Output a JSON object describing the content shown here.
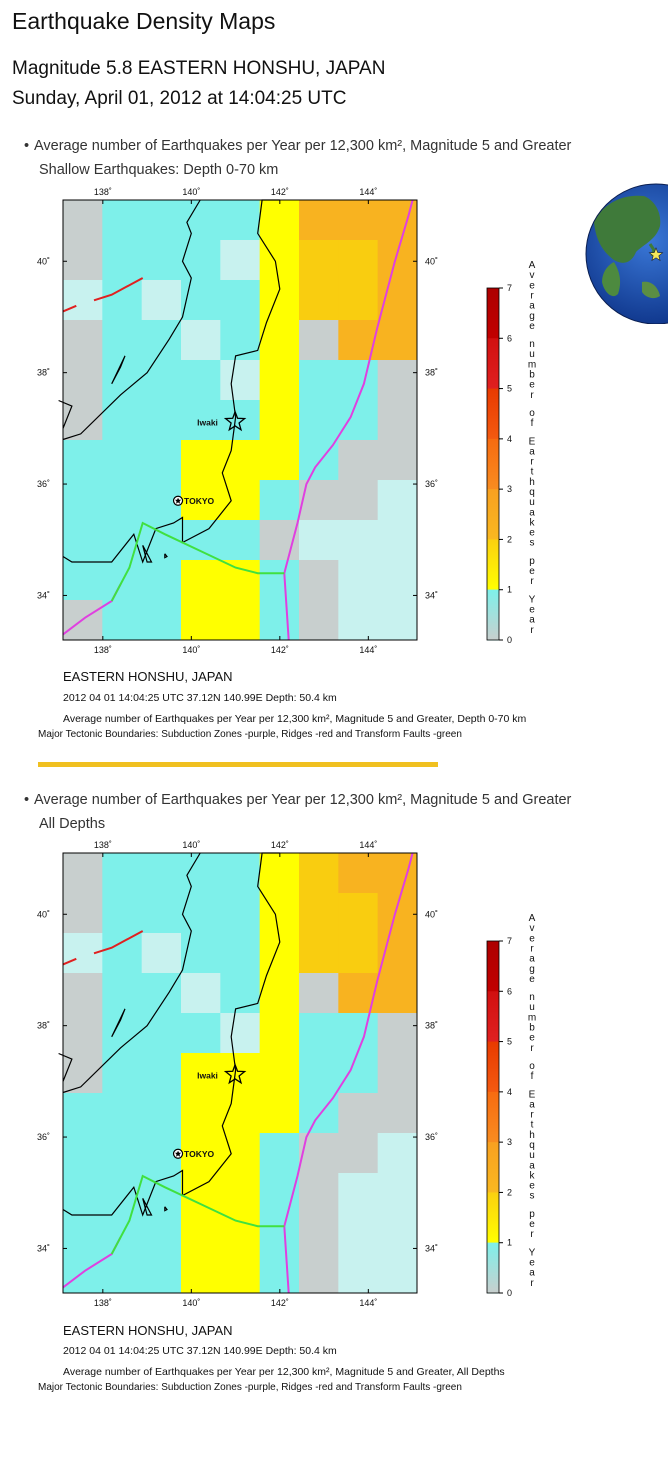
{
  "page": {
    "title": "Earthquake Density Maps",
    "event_line": "Magnitude 5.8 EASTERN HONSHU, JAPAN",
    "date_line": "Sunday, April 01, 2012 at 14:04:25 UTC"
  },
  "colors": {
    "cyan": "#7ef0ea",
    "pale": "#c8f2ef",
    "gray": "#c8cfce",
    "yellow": "#ffff00",
    "gold": "#f9cd10",
    "orange": "#f8b320",
    "subduction": "#e040e0",
    "ridge": "#e02020",
    "transform": "#40e040",
    "divider": "#f0c020"
  },
  "sections": [
    {
      "bullet_text": "Average number of Earthquakes per Year per 12,300 km², Magnitude 5 and Greater",
      "sub_text": "Shallow Earthquakes: Depth 0-70 km",
      "caption_place": "EASTERN HONSHU, JAPAN",
      "caption_meta": "2012 04 01 14:04:25 UTC 37.12N 140.99E Depth: 50.4 km",
      "caption_desc": "Average number of Earthquakes per Year per 12,300 km², Magnitude 5 and Greater, Depth 0-70 km",
      "caption_tectonic": "Major Tectonic Boundaries: Subduction Zones -purple, Ridges -red and Transform Faults -green"
    },
    {
      "bullet_text": "Average number of Earthquakes per Year per 12,300 km², Magnitude 5 and Greater",
      "sub_text": "All Depths",
      "caption_place": "EASTERN HONSHU, JAPAN",
      "caption_meta": "2012 04 01 14:04:25 UTC 37.12N 140.99E Depth: 50.4 km",
      "caption_desc": "Average number of Earthquakes per Year per 12,300 km², Magnitude 5 and Greater, All Depths",
      "caption_tectonic": "Major Tectonic Boundaries: Subduction Zones -purple, Ridges -red and Transform Faults -green"
    }
  ],
  "map": {
    "lon_ticks": [
      "138˚",
      "140˚",
      "142˚",
      "144˚"
    ],
    "lat_ticks": [
      "40˚",
      "38˚",
      "36˚",
      "34˚"
    ],
    "city_label": "TOKYO",
    "epicenter_label": "Iwaki",
    "colorbar_ticks": [
      "7",
      "6",
      "5",
      "4",
      "3",
      "2",
      "1",
      "0"
    ],
    "colorbar_title": "Average number of Earthquakes per Year",
    "grid_shallow": [
      "gccccybbb",
      "gcccpyoob",
      "pcpccyoob",
      "gccpcygbb",
      "gcccpyccg",
      "gccccyccg",
      "cccyyycgg",
      "cccyycggp",
      "cccccgppp",
      "cccyycgpp",
      "gccyycgpp"
    ],
    "grid_all": [
      "gccccyobb",
      "gccccyoob",
      "pcpccyoob",
      "gccpcygbb",
      "gcccpyccg",
      "gccyyyccg",
      "cccyyycgg",
      "cccyycggp",
      "cccyycgpp",
      "cccyycgpp",
      "cccyycgpp"
    ]
  }
}
